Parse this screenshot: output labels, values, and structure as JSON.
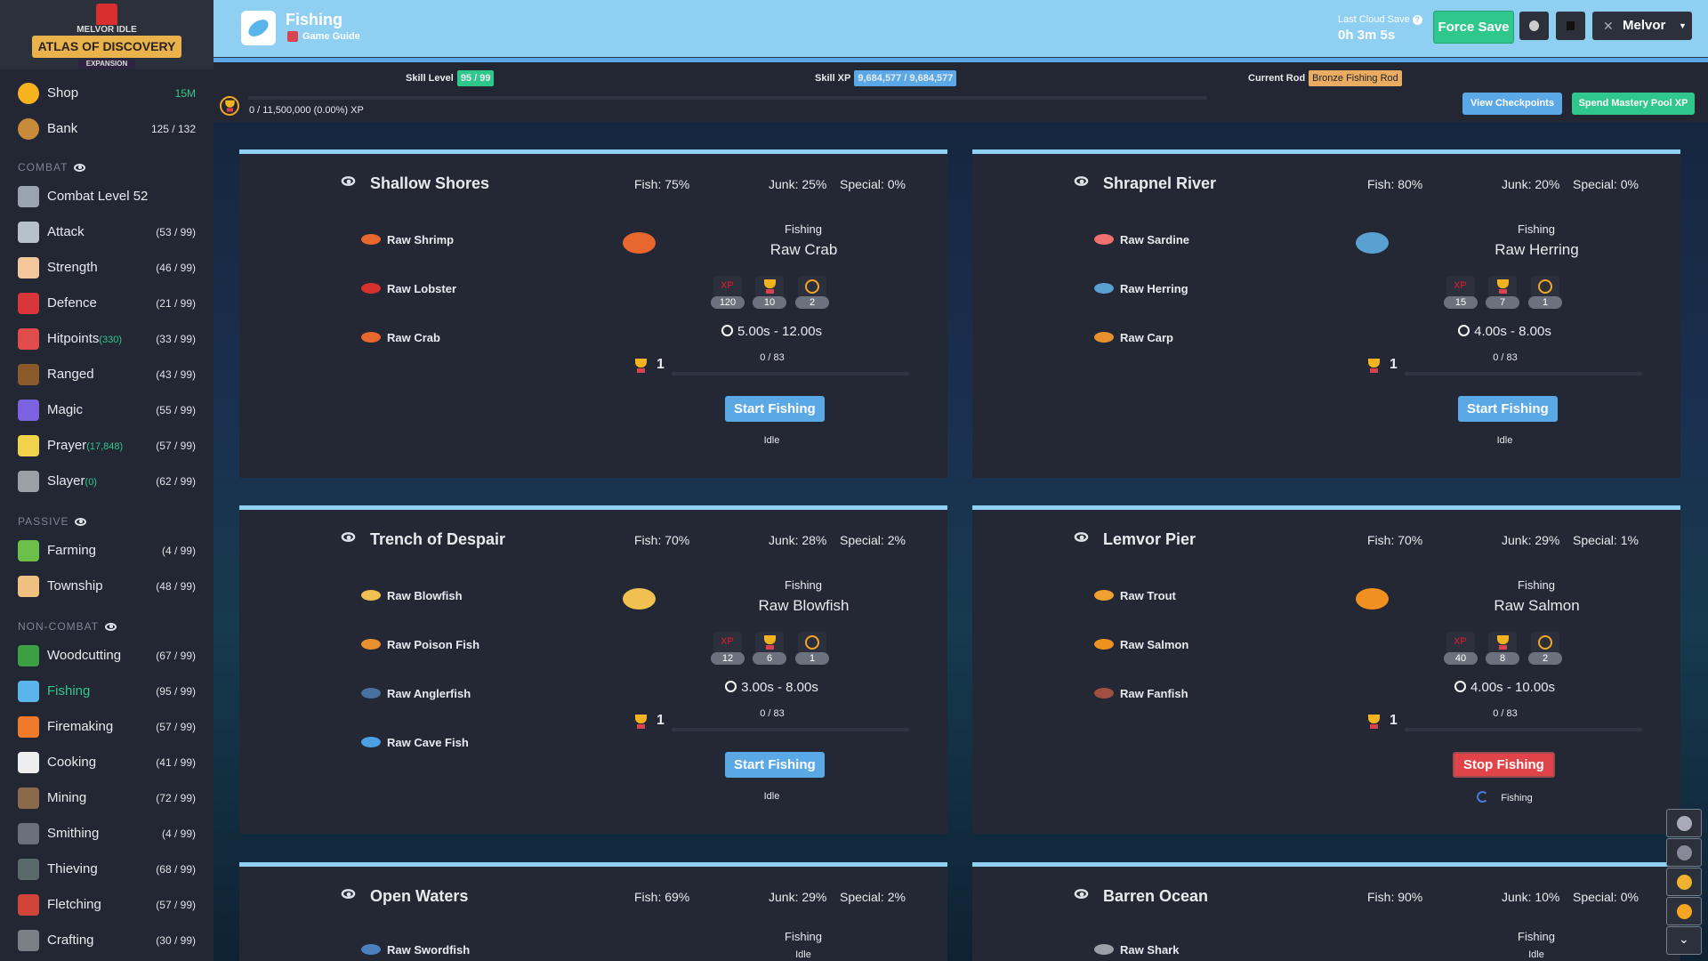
{
  "logo": {
    "top": "MELVOR IDLE",
    "banner": "ATLAS OF DISCOVERY",
    "sub": "EXPANSION"
  },
  "sidebar": {
    "top": [
      {
        "name": "Shop",
        "value": "15M",
        "icon": "coin-icon",
        "color": "#f5b320",
        "green": true
      },
      {
        "name": "Bank",
        "value": "125 / 132",
        "icon": "chest-icon",
        "color": "#c98a3a"
      }
    ],
    "sections": [
      {
        "title": "COMBAT",
        "items": [
          {
            "name": "Combat Level 52",
            "level": "",
            "icon": "crossed-swords-icon",
            "color": "#9aa4b0"
          },
          {
            "name": "Attack",
            "level": "(53 / 99)",
            "icon": "sword-icon",
            "color": "#b8c0ca"
          },
          {
            "name": "Strength",
            "level": "(46 / 99)",
            "icon": "arm-icon",
            "color": "#f3c79c"
          },
          {
            "name": "Defence",
            "level": "(21 / 99)",
            "icon": "shield-icon",
            "color": "#d8363a"
          },
          {
            "name": "Hitpoints",
            "extra": "(330)",
            "level": "(33 / 99)",
            "icon": "heart-icon",
            "color": "#e04b4b"
          },
          {
            "name": "Ranged",
            "level": "(43 / 99)",
            "icon": "bow-icon",
            "color": "#8a5a2b"
          },
          {
            "name": "Magic",
            "extra": "",
            "level": "(55 / 99)",
            "icon": "wizard-hat-icon",
            "color": "#7a62e0"
          },
          {
            "name": "Prayer",
            "extra": "(17,848)",
            "level": "(57 / 99)",
            "icon": "sparkle-icon",
            "color": "#f0d34a"
          },
          {
            "name": "Slayer",
            "extra": "(0)",
            "level": "(62 / 99)",
            "icon": "slayer-icon",
            "color": "#9aa0a8"
          }
        ]
      },
      {
        "title": "PASSIVE",
        "items": [
          {
            "name": "Farming",
            "level": "(4 / 99)",
            "icon": "sprout-icon",
            "color": "#6cc04a"
          },
          {
            "name": "Township",
            "level": "(48 / 99)",
            "icon": "house-icon",
            "color": "#f0c080"
          }
        ]
      },
      {
        "title": "NON-COMBAT",
        "items": [
          {
            "name": "Woodcutting",
            "level": "(67 / 99)",
            "icon": "tree-icon",
            "color": "#3aa043"
          },
          {
            "name": "Fishing",
            "level": "(95 / 99)",
            "icon": "fish-icon",
            "color": "#5ab5ea",
            "active": true
          },
          {
            "name": "Firemaking",
            "level": "(57 / 99)",
            "icon": "campfire-icon",
            "color": "#f07a2a"
          },
          {
            "name": "Cooking",
            "level": "(41 / 99)",
            "icon": "chef-hat-icon",
            "color": "#eeeeee"
          },
          {
            "name": "Mining",
            "level": "(72 / 99)",
            "icon": "pickaxe-icon",
            "color": "#8a6a4a"
          },
          {
            "name": "Smithing",
            "level": "(4 / 99)",
            "icon": "anvil-icon",
            "color": "#6a707a"
          },
          {
            "name": "Thieving",
            "level": "(68 / 99)",
            "icon": "thief-icon",
            "color": "#5a6a6a"
          },
          {
            "name": "Fletching",
            "level": "(57 / 99)",
            "icon": "arrows-icon",
            "color": "#d0443a"
          },
          {
            "name": "Crafting",
            "level": "(30 / 99)",
            "icon": "hammer-icon",
            "color": "#7a7f88"
          }
        ]
      }
    ],
    "active_color": "#30c78d"
  },
  "header": {
    "title": "Fishing",
    "guide": "Game Guide",
    "cloud_label": "Last Cloud Save",
    "cloud_time": "0h 3m 5s",
    "force_save": "Force Save",
    "user": "Melvor"
  },
  "skill": {
    "level_label": "Skill Level",
    "level": "95 / 99",
    "xp_label": "Skill XP",
    "xp": "9,684,577 / 9,684,577",
    "rod_label": "Current Rod",
    "rod": "Bronze Fishing Rod",
    "pool": "0 / 11,500,000 (0.00%) XP",
    "pool_progress": 0,
    "view_checkpoints": "View Checkpoints",
    "spend_pool": "Spend Mastery Pool XP"
  },
  "areas": [
    {
      "name": "Shallow Shores",
      "fish": "Fish: 75%",
      "junk": "Junk: 25%",
      "special": "Special: 0%",
      "list": [
        {
          "n": "Raw Shrimp",
          "c": "#e8672e"
        },
        {
          "n": "Raw Lobster",
          "c": "#d8302e"
        },
        {
          "n": "Raw Crab",
          "c": "#e8672e"
        }
      ],
      "label": "Fishing",
      "selected": "Raw Crab",
      "sel_color": "#e8672e",
      "xp": "120",
      "mastery": "10",
      "pool": "2",
      "time": "5.00s - 12.00s",
      "mlevel": "1",
      "mprog": "0 / 83",
      "button": "Start Fishing",
      "status": "Idle",
      "active": false
    },
    {
      "name": "Shrapnel River",
      "fish": "Fish: 80%",
      "junk": "Junk: 20%",
      "special": "Special: 0%",
      "list": [
        {
          "n": "Raw Sardine",
          "c": "#f07070"
        },
        {
          "n": "Raw Herring",
          "c": "#5aa0d0"
        },
        {
          "n": "Raw Carp",
          "c": "#e8902e"
        }
      ],
      "label": "Fishing",
      "selected": "Raw Herring",
      "sel_color": "#5aa0d0",
      "xp": "15",
      "mastery": "7",
      "pool": "1",
      "time": "4.00s - 8.00s",
      "mlevel": "1",
      "mprog": "0 / 83",
      "button": "Start Fishing",
      "status": "Idle",
      "active": false
    },
    {
      "name": "Trench of Despair",
      "fish": "Fish: 70%",
      "junk": "Junk: 28%",
      "special": "Special: 2%",
      "list": [
        {
          "n": "Raw Blowfish",
          "c": "#f0c050"
        },
        {
          "n": "Raw Poison Fish",
          "c": "#e8902e"
        },
        {
          "n": "Raw Anglerfish",
          "c": "#4a70a0"
        },
        {
          "n": "Raw Cave Fish",
          "c": "#4aa0e0"
        }
      ],
      "label": "Fishing",
      "selected": "Raw Blowfish",
      "sel_color": "#f0c050",
      "xp": "12",
      "mastery": "6",
      "pool": "1",
      "time": "3.00s - 8.00s",
      "mlevel": "1",
      "mprog": "0 / 83",
      "button": "Start Fishing",
      "status": "Idle",
      "active": false
    },
    {
      "name": "Lemvor Pier",
      "fish": "Fish: 70%",
      "junk": "Junk: 29%",
      "special": "Special: 1%",
      "list": [
        {
          "n": "Raw Trout",
          "c": "#f0a030"
        },
        {
          "n": "Raw Salmon",
          "c": "#f09020"
        },
        {
          "n": "Raw Fanfish",
          "c": "#a05040"
        }
      ],
      "label": "Fishing",
      "selected": "Raw Salmon",
      "sel_color": "#f09020",
      "xp": "40",
      "mastery": "8",
      "pool": "2",
      "time": "4.00s - 10.00s",
      "mlevel": "1",
      "mprog": "0 / 83",
      "button": "Stop Fishing",
      "status": "Fishing",
      "active": true
    },
    {
      "name": "Open Waters",
      "fish": "Fish: 69%",
      "junk": "Junk: 29%",
      "special": "Special: 2%",
      "list": [
        {
          "n": "Raw Swordfish",
          "c": "#4a80c0"
        }
      ],
      "label": "Fishing",
      "status": "Idle"
    },
    {
      "name": "Barren Ocean",
      "fish": "Fish: 90%",
      "junk": "Junk: 10%",
      "special": "Special: 0%",
      "list": [
        {
          "n": "Raw Shark",
          "c": "#9aa0a8"
        }
      ],
      "label": "Fishing",
      "status": "Idle"
    }
  ],
  "tools": [
    "gear-icon",
    "wolf-icon",
    "medal-icon",
    "trophy-icon",
    "chevron-down-icon"
  ],
  "colors": {
    "header": "#8ecff2",
    "green": "#30c78d",
    "blue": "#5aa9e6",
    "red": "#e04448",
    "rod": "#e9ac62"
  }
}
